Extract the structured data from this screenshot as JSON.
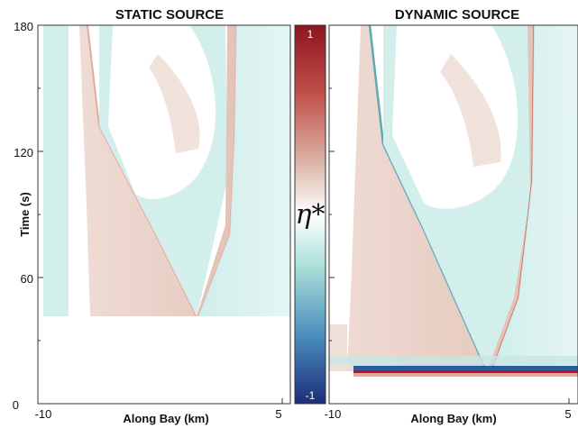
{
  "chart_data": {
    "type": "heatmap",
    "panels": [
      {
        "title": "STATIC SOURCE",
        "xlabel": "Along Bay (km)",
        "ylabel": "Time (s)"
      },
      {
        "title": "DYNAMIC SOURCE",
        "xlabel": "Along Bay (km)",
        "ylabel": ""
      }
    ],
    "xlim": [
      -10,
      5
    ],
    "ylim": [
      0,
      180
    ],
    "x_ticks": [
      "-10",
      "5"
    ],
    "y_ticks": [
      "0",
      "60",
      "120",
      "180"
    ],
    "colorbar": {
      "symbol": "η*",
      "min_label": "1",
      "max_label": "-1",
      "range": [
        -1,
        1
      ]
    },
    "colormap": {
      "positive": "#b2182b",
      "neutral": "#ffffff",
      "negative": "#2b5aa8",
      "mid_positive": "#e9cfc6",
      "mid_negative": "#c9ece9"
    }
  }
}
